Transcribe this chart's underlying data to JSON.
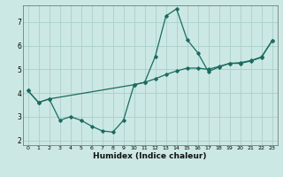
{
  "xlabel": "Humidex (Indice chaleur)",
  "bg_color": "#cce8e4",
  "grid_color": "#aacfcb",
  "line_color": "#1a6b60",
  "xlim": [
    -0.5,
    23.5
  ],
  "ylim": [
    1.8,
    7.7
  ],
  "yticks": [
    2,
    3,
    4,
    5,
    6,
    7
  ],
  "xticks": [
    0,
    1,
    2,
    3,
    4,
    5,
    6,
    7,
    8,
    9,
    10,
    11,
    12,
    13,
    14,
    15,
    16,
    17,
    18,
    19,
    20,
    21,
    22,
    23
  ],
  "series1_x": [
    0,
    1,
    2,
    3,
    4,
    5,
    6,
    7,
    8,
    9,
    10,
    11,
    12,
    13,
    14,
    15,
    16,
    17,
    18,
    19,
    20,
    21,
    22,
    23
  ],
  "series1_y": [
    4.1,
    3.6,
    3.75,
    2.85,
    3.0,
    2.85,
    2.6,
    2.4,
    2.35,
    2.85,
    4.35,
    4.45,
    5.55,
    7.25,
    7.55,
    6.25,
    5.7,
    4.9,
    5.1,
    5.25,
    5.25,
    5.35,
    5.5,
    6.2
  ],
  "series2_x": [
    0,
    1,
    2,
    10,
    11,
    12,
    13,
    14,
    15,
    16,
    17,
    18,
    19,
    20,
    21,
    22,
    23
  ],
  "series2_y": [
    4.1,
    3.6,
    3.75,
    4.35,
    4.45,
    4.6,
    4.78,
    4.93,
    5.05,
    5.05,
    5.0,
    5.12,
    5.25,
    5.28,
    5.37,
    5.52,
    6.2
  ]
}
